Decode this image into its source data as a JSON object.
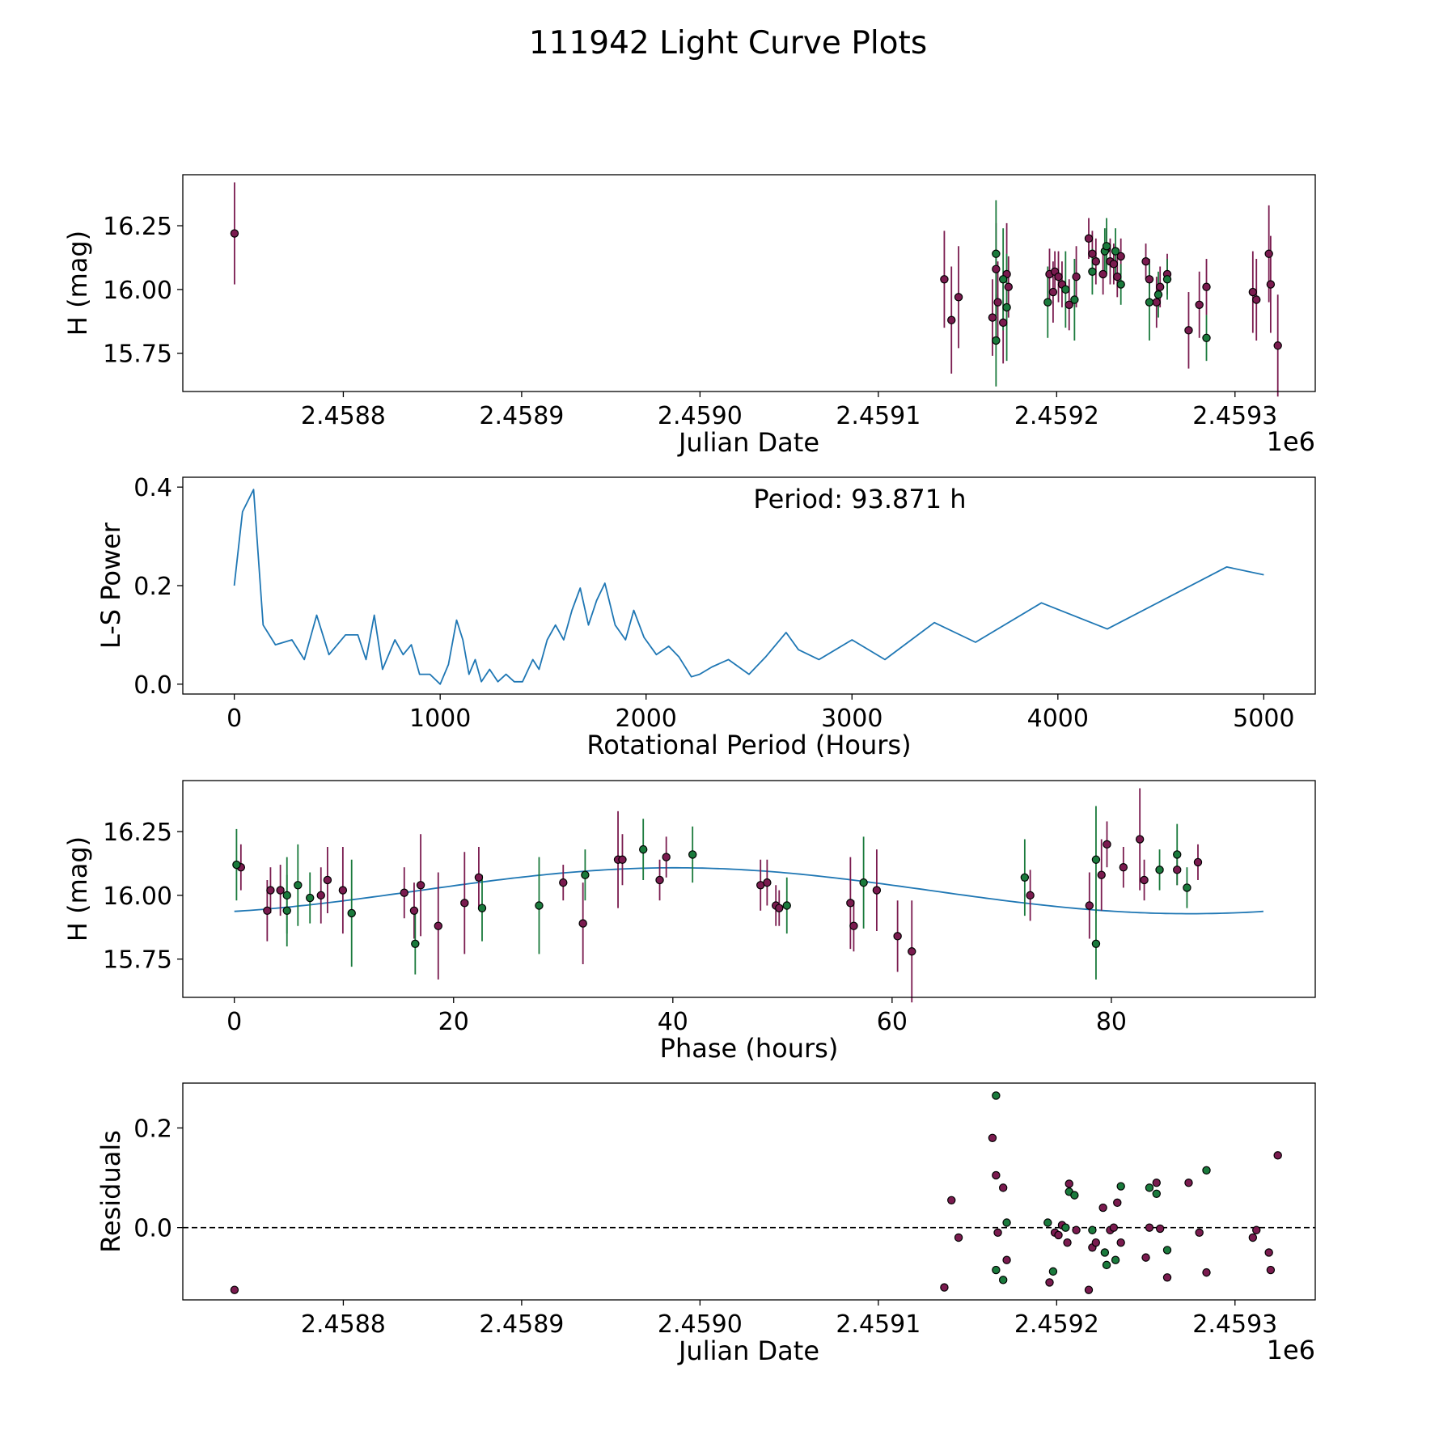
{
  "title": "111942 Light Curve Plots",
  "colors": {
    "band_a": "#7a1b4f",
    "band_b": "#1a7a3c",
    "periodogram": "#1f77b4",
    "fit": "#1f77b4",
    "marker_edge": "#000000",
    "zero_line": "#000000"
  },
  "chart_data": [
    {
      "id": "light_curve",
      "type": "scatter",
      "xlabel": "Julian Date",
      "ylabel": "H (mag)",
      "offset_label": "1e6",
      "xlim": [
        2458710,
        2459345
      ],
      "ylim": [
        15.6,
        16.45
      ],
      "xticks": [
        2458800,
        2458900,
        2459000,
        2459100,
        2459200,
        2459300
      ],
      "xtick_labels": [
        "2.4588",
        "2.4589",
        "2.4590",
        "2.4591",
        "2.4592",
        "2.4593"
      ],
      "yticks": [
        15.75,
        16.0,
        16.25
      ],
      "ytick_labels": [
        "15.75",
        "16.00",
        "16.25"
      ],
      "series": [
        {
          "name": "band_a",
          "points": [
            [
              2458739,
              16.22,
              0.2
            ],
            [
              2459137,
              16.04,
              0.19
            ],
            [
              2459141,
              15.88,
              0.21
            ],
            [
              2459145,
              15.97,
              0.2
            ],
            [
              2459164,
              15.89,
              0.15
            ],
            [
              2459166,
              16.08,
              0.18
            ],
            [
              2459167,
              15.95,
              0.16
            ],
            [
              2459170,
              15.87,
              0.16
            ],
            [
              2459172,
              16.06,
              0.2
            ],
            [
              2459173,
              16.01,
              0.12
            ],
            [
              2459196,
              16.06,
              0.1
            ],
            [
              2459198,
              15.99,
              0.12
            ],
            [
              2459199,
              16.07,
              0.08
            ],
            [
              2459201,
              16.05,
              0.1
            ],
            [
              2459203,
              16.02,
              0.09
            ],
            [
              2459207,
              15.94,
              0.1
            ],
            [
              2459211,
              16.05,
              0.12
            ],
            [
              2459218,
              16.2,
              0.08
            ],
            [
              2459220,
              16.14,
              0.09
            ],
            [
              2459222,
              16.11,
              0.09
            ],
            [
              2459226,
              16.06,
              0.08
            ],
            [
              2459228,
              16.16,
              0.08
            ],
            [
              2459230,
              16.11,
              0.09
            ],
            [
              2459232,
              16.1,
              0.08
            ],
            [
              2459234,
              16.05,
              0.08
            ],
            [
              2459236,
              16.13,
              0.07
            ],
            [
              2459250,
              16.11,
              0.07
            ],
            [
              2459252,
              16.04,
              0.08
            ],
            [
              2459256,
              15.95,
              0.1
            ],
            [
              2459258,
              16.01,
              0.08
            ],
            [
              2459262,
              16.06,
              0.08
            ],
            [
              2459274,
              15.84,
              0.15
            ],
            [
              2459280,
              15.94,
              0.13
            ],
            [
              2459284,
              16.01,
              0.11
            ],
            [
              2459310,
              15.99,
              0.16
            ],
            [
              2459312,
              15.96,
              0.16
            ],
            [
              2459319,
              16.14,
              0.19
            ],
            [
              2459320,
              16.02,
              0.19
            ],
            [
              2459324,
              15.78,
              0.2
            ]
          ]
        },
        {
          "name": "band_b",
          "points": [
            [
              2459166,
              15.8,
              0.18
            ],
            [
              2459166,
              16.14,
              0.21
            ],
            [
              2459170,
              16.04,
              0.2
            ],
            [
              2459172,
              15.93,
              0.21
            ],
            [
              2459195,
              15.95,
              0.14
            ],
            [
              2459205,
              16.0,
              0.15
            ],
            [
              2459210,
              15.96,
              0.16
            ],
            [
              2459220,
              16.07,
              0.09
            ],
            [
              2459227,
              16.15,
              0.09
            ],
            [
              2459228,
              16.17,
              0.11
            ],
            [
              2459233,
              16.15,
              0.09
            ],
            [
              2459236,
              16.02,
              0.08
            ],
            [
              2459252,
              15.95,
              0.15
            ],
            [
              2459257,
              15.98,
              0.09
            ],
            [
              2459262,
              16.04,
              0.08
            ],
            [
              2459284,
              15.81,
              0.09
            ]
          ]
        }
      ]
    },
    {
      "id": "periodogram",
      "type": "line",
      "xlabel": "Rotational Period (Hours)",
      "ylabel": "L-S Power",
      "annotation": "Period: 93.871 h",
      "xlim": [
        -250,
        5250
      ],
      "ylim": [
        -0.02,
        0.42
      ],
      "xticks": [
        0,
        1000,
        2000,
        3000,
        4000,
        5000
      ],
      "xtick_labels": [
        "0",
        "1000",
        "2000",
        "3000",
        "4000",
        "5000"
      ],
      "yticks": [
        0.0,
        0.2,
        0.4
      ],
      "ytick_labels": [
        "0.0",
        "0.2",
        "0.4"
      ],
      "x": [
        0,
        40,
        93.9,
        140,
        200,
        280,
        340,
        400,
        460,
        540,
        600,
        640,
        680,
        720,
        780,
        820,
        860,
        900,
        950,
        1000,
        1040,
        1080,
        1110,
        1140,
        1170,
        1200,
        1240,
        1280,
        1320,
        1360,
        1400,
        1450,
        1480,
        1520,
        1560,
        1600,
        1640,
        1680,
        1720,
        1760,
        1800,
        1850,
        1900,
        1940,
        1990,
        2050,
        2110,
        2160,
        2220,
        2260,
        2320,
        2400,
        2500,
        2580,
        2680,
        2740,
        2840,
        3000,
        3160,
        3400,
        3600,
        3920,
        4240,
        4820,
        5000
      ],
      "y": [
        0.2,
        0.35,
        0.395,
        0.12,
        0.08,
        0.09,
        0.05,
        0.14,
        0.06,
        0.1,
        0.1,
        0.05,
        0.14,
        0.03,
        0.09,
        0.06,
        0.08,
        0.02,
        0.02,
        0.0,
        0.04,
        0.13,
        0.09,
        0.02,
        0.05,
        0.005,
        0.03,
        0.005,
        0.02,
        0.005,
        0.005,
        0.05,
        0.03,
        0.09,
        0.12,
        0.09,
        0.15,
        0.195,
        0.12,
        0.17,
        0.205,
        0.12,
        0.09,
        0.15,
        0.095,
        0.06,
        0.077,
        0.055,
        0.015,
        0.02,
        0.035,
        0.05,
        0.02,
        0.055,
        0.105,
        0.07,
        0.05,
        0.09,
        0.05,
        0.125,
        0.085,
        0.165,
        0.112,
        0.238,
        0.222
      ]
    },
    {
      "id": "phase_curve",
      "type": "scatter",
      "xlabel": "Phase (hours)",
      "ylabel": "H (mag)",
      "xlim": [
        -4.7,
        98.6
      ],
      "ylim": [
        15.6,
        16.45
      ],
      "xticks": [
        0,
        20,
        40,
        60,
        80
      ],
      "xtick_labels": [
        "0",
        "20",
        "40",
        "60",
        "80"
      ],
      "yticks": [
        15.75,
        16.0,
        16.25
      ],
      "ytick_labels": [
        "15.75",
        "16.00",
        "16.25"
      ],
      "fit": {
        "period": 93.871,
        "mean": 16.018,
        "amplitude": 0.09,
        "phase_peak": 40.2,
        "x_min": 0,
        "x_max": 93.871
      },
      "series": [
        {
          "name": "band_a",
          "points": [
            [
              0.6,
              16.11,
              0.09
            ],
            [
              3.0,
              15.94,
              0.12
            ],
            [
              3.3,
              16.02,
              0.09
            ],
            [
              4.2,
              16.02,
              0.1
            ],
            [
              7.9,
              16.0,
              0.11
            ],
            [
              8.5,
              16.06,
              0.13
            ],
            [
              9.9,
              16.02,
              0.17
            ],
            [
              15.5,
              16.01,
              0.1
            ],
            [
              16.4,
              15.94,
              0.11
            ],
            [
              17.0,
              16.04,
              0.2
            ],
            [
              18.6,
              15.88,
              0.21
            ],
            [
              21.0,
              15.97,
              0.2
            ],
            [
              22.3,
              16.07,
              0.12
            ],
            [
              30.0,
              16.05,
              0.07
            ],
            [
              31.8,
              15.89,
              0.16
            ],
            [
              35.0,
              16.14,
              0.19
            ],
            [
              35.4,
              16.14,
              0.1
            ],
            [
              38.8,
              16.06,
              0.08
            ],
            [
              39.4,
              16.15,
              0.08
            ],
            [
              48.0,
              16.04,
              0.1
            ],
            [
              48.6,
              16.05,
              0.09
            ],
            [
              49.4,
              15.96,
              0.08
            ],
            [
              49.7,
              15.95,
              0.07
            ],
            [
              56.2,
              15.97,
              0.18
            ],
            [
              56.5,
              15.88,
              0.1
            ],
            [
              58.6,
              16.02,
              0.16
            ],
            [
              60.5,
              15.84,
              0.14
            ],
            [
              61.8,
              15.78,
              0.2
            ],
            [
              72.6,
              16.0,
              0.1
            ],
            [
              78.0,
              15.96,
              0.13
            ],
            [
              79.1,
              16.08,
              0.14
            ],
            [
              79.6,
              16.2,
              0.09
            ],
            [
              81.1,
              16.11,
              0.08
            ],
            [
              82.6,
              16.22,
              0.2
            ],
            [
              83.0,
              16.06,
              0.08
            ],
            [
              86.0,
              16.1,
              0.06
            ],
            [
              87.9,
              16.13,
              0.07
            ]
          ]
        },
        {
          "name": "band_b",
          "points": [
            [
              0.2,
              16.12,
              0.14
            ],
            [
              4.8,
              15.94,
              0.14
            ],
            [
              4.8,
              16.0,
              0.15
            ],
            [
              5.8,
              16.04,
              0.16
            ],
            [
              6.9,
              15.99,
              0.1
            ],
            [
              10.7,
              15.93,
              0.21
            ],
            [
              16.5,
              15.81,
              0.12
            ],
            [
              22.6,
              15.95,
              0.13
            ],
            [
              27.8,
              15.96,
              0.19
            ],
            [
              32.0,
              16.08,
              0.1
            ],
            [
              37.3,
              16.18,
              0.12
            ],
            [
              41.8,
              16.16,
              0.11
            ],
            [
              50.4,
              15.96,
              0.11
            ],
            [
              57.4,
              16.05,
              0.18
            ],
            [
              72.1,
              16.07,
              0.15
            ],
            [
              78.6,
              15.81,
              0.14
            ],
            [
              78.6,
              16.14,
              0.21
            ],
            [
              84.4,
              16.1,
              0.08
            ],
            [
              86.0,
              16.16,
              0.12
            ],
            [
              86.9,
              16.03,
              0.08
            ]
          ]
        }
      ]
    },
    {
      "id": "residuals",
      "type": "scatter",
      "xlabel": "Julian Date",
      "ylabel": "Residuals",
      "offset_label": "1e6",
      "xlim": [
        2458710,
        2459345
      ],
      "ylim": [
        -0.145,
        0.29
      ],
      "xticks": [
        2458800,
        2458900,
        2459000,
        2459100,
        2459200,
        2459300
      ],
      "xtick_labels": [
        "2.4588",
        "2.4589",
        "2.4590",
        "2.4591",
        "2.4592",
        "2.4593"
      ],
      "yticks": [
        0.0,
        0.2
      ],
      "ytick_labels": [
        "0.0",
        "0.2"
      ],
      "zero_line": 0.0,
      "series": [
        {
          "name": "band_a",
          "points": [
            [
              2458739,
              -0.125
            ],
            [
              2459137,
              -0.12
            ],
            [
              2459141,
              0.055
            ],
            [
              2459145,
              -0.02
            ],
            [
              2459164,
              0.18
            ],
            [
              2459166,
              0.105
            ],
            [
              2459167,
              -0.01
            ],
            [
              2459170,
              0.08
            ],
            [
              2459172,
              -0.065
            ],
            [
              2459196,
              -0.11
            ],
            [
              2459199,
              -0.01
            ],
            [
              2459201,
              -0.015
            ],
            [
              2459203,
              0.005
            ],
            [
              2459206,
              -0.03
            ],
            [
              2459207,
              0.088
            ],
            [
              2459211,
              -0.005
            ],
            [
              2459218,
              -0.125
            ],
            [
              2459220,
              -0.04
            ],
            [
              2459222,
              -0.03
            ],
            [
              2459226,
              0.04
            ],
            [
              2459230,
              -0.005
            ],
            [
              2459232,
              0.0
            ],
            [
              2459234,
              0.05
            ],
            [
              2459236,
              -0.03
            ],
            [
              2459250,
              -0.06
            ],
            [
              2459252,
              0.0
            ],
            [
              2459256,
              0.09
            ],
            [
              2459258,
              -0.002
            ],
            [
              2459262,
              -0.1
            ],
            [
              2459274,
              0.09
            ],
            [
              2459280,
              -0.01
            ],
            [
              2459284,
              -0.09
            ],
            [
              2459310,
              -0.02
            ],
            [
              2459312,
              -0.005
            ],
            [
              2459319,
              -0.05
            ],
            [
              2459320,
              -0.085
            ],
            [
              2459324,
              0.145
            ]
          ]
        },
        {
          "name": "band_b",
          "points": [
            [
              2459166,
              0.265
            ],
            [
              2459166,
              -0.085
            ],
            [
              2459170,
              -0.105
            ],
            [
              2459172,
              0.01
            ],
            [
              2459195,
              0.01
            ],
            [
              2459198,
              -0.088
            ],
            [
              2459205,
              0.0
            ],
            [
              2459207,
              0.072
            ],
            [
              2459210,
              0.065
            ],
            [
              2459220,
              -0.005
            ],
            [
              2459227,
              -0.05
            ],
            [
              2459228,
              -0.075
            ],
            [
              2459233,
              -0.065
            ],
            [
              2459236,
              0.083
            ],
            [
              2459252,
              0.08
            ],
            [
              2459256,
              0.068
            ],
            [
              2459262,
              -0.045
            ],
            [
              2459284,
              0.115
            ]
          ]
        }
      ]
    }
  ]
}
